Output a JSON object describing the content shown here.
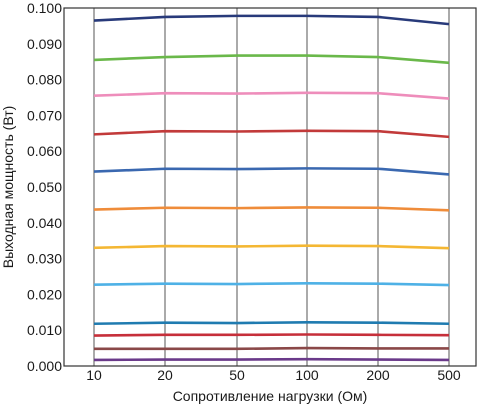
{
  "chart_data": {
    "type": "line",
    "title": "",
    "xlabel": "Сопротивление нагрузки (Ом)",
    "ylabel": "Выходная мощность (Вт)",
    "categories": [
      "10",
      "20",
      "50",
      "100",
      "200",
      "500"
    ],
    "ylim": [
      0,
      0.1
    ],
    "yticks": [
      "0.000",
      "0.010",
      "0.020",
      "0.030",
      "0.040",
      "0.050",
      "0.060",
      "0.070",
      "0.080",
      "0.090",
      "0.100"
    ],
    "grid": true,
    "legend": "none",
    "series": [
      {
        "color": "#283a7a",
        "values": [
          0.0965,
          0.0975,
          0.0978,
          0.0978,
          0.0975,
          0.0955
        ]
      },
      {
        "color": "#6ab84a",
        "values": [
          0.0855,
          0.0863,
          0.0867,
          0.0867,
          0.0863,
          0.0847
        ]
      },
      {
        "color": "#ee8dbb",
        "values": [
          0.0755,
          0.0762,
          0.0761,
          0.0763,
          0.0762,
          0.0747
        ]
      },
      {
        "color": "#c23a3a",
        "values": [
          0.0647,
          0.0656,
          0.0655,
          0.0657,
          0.0656,
          0.064
        ]
      },
      {
        "color": "#3a68b0",
        "values": [
          0.0543,
          0.0551,
          0.055,
          0.0552,
          0.0551,
          0.0535
        ]
      },
      {
        "color": "#ef8c3a",
        "values": [
          0.0437,
          0.0442,
          0.0441,
          0.0443,
          0.0442,
          0.0435
        ]
      },
      {
        "color": "#f4b733",
        "values": [
          0.033,
          0.0335,
          0.0334,
          0.0336,
          0.0335,
          0.0329
        ]
      },
      {
        "color": "#4eb1e6",
        "values": [
          0.0227,
          0.023,
          0.0229,
          0.0231,
          0.023,
          0.0226
        ]
      },
      {
        "color": "#1f7bb0",
        "values": [
          0.0118,
          0.0121,
          0.012,
          0.0122,
          0.0121,
          0.0118
        ]
      },
      {
        "color": "#c62f3a",
        "values": [
          0.0085,
          0.0087,
          0.0087,
          0.0088,
          0.0087,
          0.0086
        ]
      },
      {
        "color": "#8a4848",
        "values": [
          0.0048,
          0.0048,
          0.0048,
          0.005,
          0.0049,
          0.0049
        ]
      },
      {
        "color": "#6a3a8a",
        "values": [
          0.0017,
          0.0018,
          0.0018,
          0.0019,
          0.0018,
          0.0017
        ]
      }
    ]
  }
}
